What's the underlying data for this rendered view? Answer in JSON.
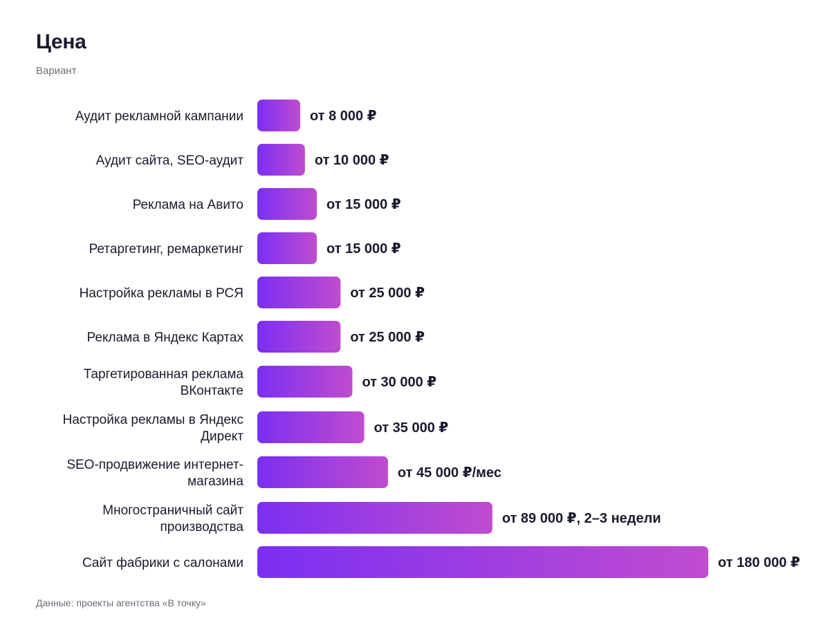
{
  "title": "Цена",
  "subtitle": "Вариант",
  "footer": "Данные: проекты агентства «В точку»",
  "colors": {
    "bar_gradient_start": "#7b2ff2",
    "bar_gradient_end": "#c04ccf",
    "text": "#1a1a2e",
    "muted": "#6b6b78"
  },
  "chart_data": {
    "type": "bar",
    "orientation": "horizontal",
    "title": "Цена",
    "subtitle": "Вариант",
    "grid": false,
    "categories": [
      [
        "Аудит рекламной кампании"
      ],
      [
        "Аудит сайта, SEO-аудит"
      ],
      [
        "Реклама на Авито"
      ],
      [
        "Ретаргетинг, ремаркетинг"
      ],
      [
        "Настройка рекламы в РСЯ"
      ],
      [
        "Реклама в Яндекс Картах"
      ],
      [
        "Таргетированная реклама",
        "ВКонтакте"
      ],
      [
        "Настройка рекламы в Яндекс",
        "Директ"
      ],
      [
        "SEO-продвижение интернет-",
        "магазина"
      ],
      [
        "Многостраничный сайт",
        "производства"
      ],
      [
        "Сайт фабрики с салонами"
      ]
    ],
    "values": [
      8000,
      10000,
      15000,
      15000,
      25000,
      25000,
      30000,
      35000,
      45000,
      89000,
      180000
    ],
    "value_labels": [
      "от 8 000 ₽",
      "от 10 000 ₽",
      "от 15 000 ₽",
      "от 15 000 ₽",
      "от 25 000 ₽",
      "от 25 000 ₽",
      "от 30 000 ₽",
      "от 35 000 ₽",
      "от 45 000 ₽/мес",
      "от 89 000 ₽, 2–3 недели",
      "от 180 000 ₽"
    ]
  }
}
